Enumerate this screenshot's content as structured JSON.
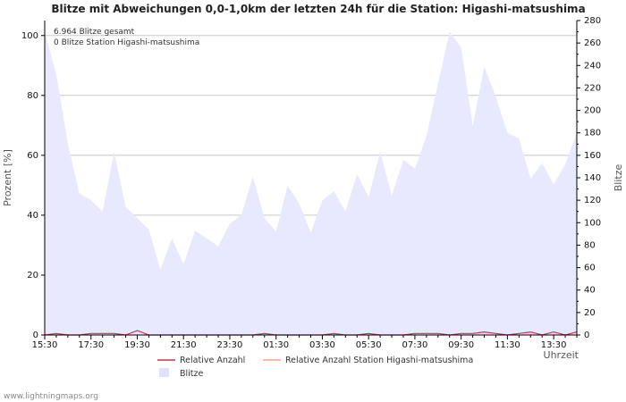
{
  "chart_data": {
    "type": "area",
    "title": "Blitze mit Abweichungen 0,0-1,0km der letzten 24h für die Station: Higashi-matsushima",
    "xlabel": "Uhrzeit",
    "ylabel_left": "Prozent   [%]",
    "ylabel_right": "Blitze",
    "ylim_left": [
      0,
      105
    ],
    "ylim_right": [
      0,
      280
    ],
    "left_ticks": [
      "0",
      "20",
      "40",
      "60",
      "80",
      "100"
    ],
    "right_ticks": [
      "0",
      "20",
      "40",
      "60",
      "80",
      "100",
      "120",
      "140",
      "160",
      "180",
      "200",
      "220",
      "240",
      "260",
      "280"
    ],
    "x_tick_labels": [
      "15:30",
      "17:30",
      "19:30",
      "21:30",
      "23:30",
      "01:30",
      "03:30",
      "05:30",
      "07:30",
      "09:30",
      "11:30",
      "13:30"
    ],
    "annotation_lines": [
      "6.964 Blitze gesamt",
      "0 Blitze Station Higashi-matsushima"
    ],
    "legend": [
      "Relative Anzahl",
      "Relative Anzahl Station Higashi-matsushima",
      "Blitze"
    ],
    "series": [
      {
        "name": "Blitze",
        "axis": "right",
        "color": "#e8e8ff",
        "values": [
          270,
          232,
          170,
          126,
          120,
          110,
          163,
          114,
          104,
          94,
          58,
          86,
          63,
          93,
          86,
          79,
          99,
          107,
          141,
          104,
          92,
          133,
          117,
          91,
          120,
          128,
          110,
          143,
          123,
          163,
          124,
          156,
          148,
          177,
          224,
          270,
          256,
          186,
          239,
          212,
          180,
          175,
          139,
          153,
          134,
          152,
          180
        ]
      },
      {
        "name": "Relative Anzahl",
        "axis": "left",
        "color": "#cc3344",
        "values": [
          0,
          0.5,
          0,
          0,
          0.5,
          0.5,
          0.5,
          0,
          1.5,
          0,
          0,
          0,
          0,
          0,
          0,
          0,
          0,
          0,
          0,
          0.5,
          0,
          0,
          0,
          0,
          0,
          0.5,
          0,
          0,
          0.5,
          0,
          0,
          0,
          0.5,
          0.5,
          0.5,
          0,
          0.5,
          0.5,
          1,
          0.5,
          0,
          0.5,
          1,
          0,
          1,
          0,
          1
        ]
      },
      {
        "name": "Relative Anzahl Station Higashi-matsushima",
        "axis": "left",
        "color": "#ff9e87",
        "values": [
          0,
          0,
          0,
          0,
          0,
          0,
          0,
          0,
          0,
          0,
          0,
          0,
          0,
          0,
          0,
          0,
          0,
          0,
          0,
          0,
          0,
          0,
          0,
          0,
          0,
          0,
          0,
          0,
          0,
          0,
          0,
          0,
          0,
          0,
          0,
          0,
          0,
          0,
          0,
          0,
          0,
          0,
          0,
          0,
          0,
          0,
          0
        ]
      }
    ]
  },
  "footer": "www.lightningmaps.org"
}
